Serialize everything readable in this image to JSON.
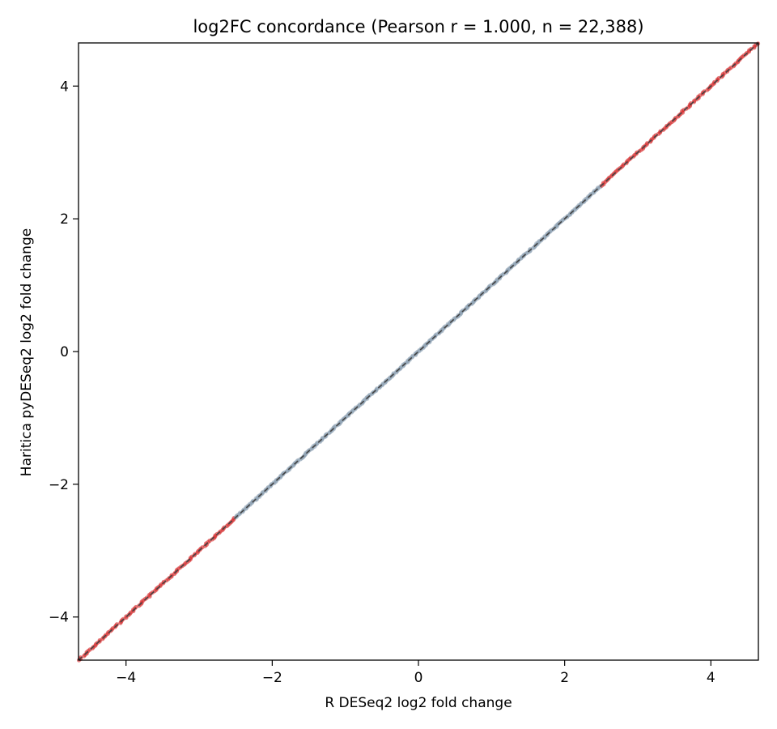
{
  "chart_data": {
    "type": "scatter",
    "title": "log2FC concordance  (Pearson r = 1.000, n = 22,388)",
    "xlabel": "R DESeq2  log2 fold change",
    "ylabel": "Haritica pyDESeq2  log2 fold change",
    "xlim": [
      -4.65,
      4.65
    ],
    "ylim": [
      -4.65,
      4.65
    ],
    "x_ticks": [
      {
        "value": -4,
        "label": "−4"
      },
      {
        "value": -2,
        "label": "−2"
      },
      {
        "value": 0,
        "label": "0"
      },
      {
        "value": 2,
        "label": "2"
      },
      {
        "value": 4,
        "label": "4"
      }
    ],
    "y_ticks": [
      {
        "value": -4,
        "label": "−4"
      },
      {
        "value": -2,
        "label": "−2"
      },
      {
        "value": 0,
        "label": "0"
      },
      {
        "value": 2,
        "label": "2"
      },
      {
        "value": 4,
        "label": "4"
      }
    ],
    "grid": false,
    "points": {
      "significant_color": "#d62728",
      "nonsignificant_color": "#8da0b3",
      "significant_ranges": [
        [
          -4.65,
          -2.5
        ],
        [
          2.5,
          4.65
        ]
      ],
      "nonsignificant_range": [
        -2.5,
        2.5
      ]
    },
    "identity_line": {
      "from": [
        -4.65,
        -4.65
      ],
      "to": [
        4.65,
        4.65
      ],
      "style": "dashed",
      "color": "#444444"
    }
  }
}
